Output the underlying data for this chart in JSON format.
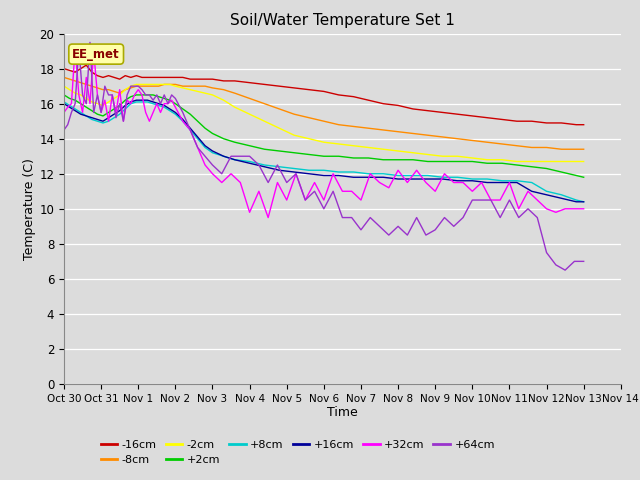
{
  "title": "Soil/Water Temperature Set 1",
  "xlabel": "Time",
  "ylabel": "Temperature (C)",
  "annotation": "EE_met",
  "ylim": [
    0,
    20
  ],
  "yticks": [
    0,
    2,
    4,
    6,
    8,
    10,
    12,
    14,
    16,
    18,
    20
  ],
  "x_labels": [
    "Oct 30",
    "Oct 31",
    "Nov 1",
    "Nov 2",
    "Nov 3",
    "Nov 4",
    "Nov 5",
    "Nov 6",
    "Nov 7",
    "Nov 8",
    "Nov 9",
    "Nov 10",
    "Nov 11",
    "Nov 12",
    "Nov 13",
    "Nov 14"
  ],
  "bg_color": "#dcdcdc",
  "series": [
    {
      "label": "-16cm",
      "color": "#cc0000",
      "data_x": [
        0,
        0.15,
        0.3,
        0.45,
        0.6,
        0.75,
        0.9,
        1.05,
        1.2,
        1.35,
        1.5,
        1.65,
        1.8,
        1.95,
        2.1,
        2.25,
        2.4,
        2.55,
        2.7,
        2.85,
        3.0,
        3.2,
        3.4,
        3.6,
        3.8,
        4.0,
        4.3,
        4.6,
        5.0,
        5.4,
        5.8,
        6.2,
        6.6,
        7.0,
        7.4,
        7.8,
        8.2,
        8.6,
        9.0,
        9.4,
        9.8,
        10.2,
        10.6,
        11.0,
        11.4,
        11.8,
        12.2,
        12.6,
        13.0,
        13.4,
        13.8,
        14.0
      ],
      "data_y": [
        18.0,
        17.9,
        17.8,
        18.0,
        18.2,
        17.8,
        17.6,
        17.5,
        17.6,
        17.5,
        17.4,
        17.6,
        17.5,
        17.6,
        17.5,
        17.5,
        17.5,
        17.5,
        17.5,
        17.5,
        17.5,
        17.5,
        17.4,
        17.4,
        17.4,
        17.4,
        17.3,
        17.3,
        17.2,
        17.1,
        17.0,
        16.9,
        16.8,
        16.7,
        16.5,
        16.4,
        16.2,
        16.0,
        15.9,
        15.7,
        15.6,
        15.5,
        15.4,
        15.3,
        15.2,
        15.1,
        15.0,
        15.0,
        14.9,
        14.9,
        14.8,
        14.8
      ]
    },
    {
      "label": "-8cm",
      "color": "#ff8c00",
      "data_x": [
        0,
        0.15,
        0.3,
        0.45,
        0.6,
        0.75,
        0.9,
        1.05,
        1.2,
        1.35,
        1.5,
        1.65,
        1.8,
        1.95,
        2.1,
        2.25,
        2.4,
        2.55,
        2.7,
        2.85,
        3.0,
        3.2,
        3.4,
        3.6,
        3.8,
        4.0,
        4.3,
        4.6,
        5.0,
        5.4,
        5.8,
        6.2,
        6.6,
        7.0,
        7.4,
        7.8,
        8.2,
        8.6,
        9.0,
        9.4,
        9.8,
        10.2,
        10.6,
        11.0,
        11.4,
        11.8,
        12.2,
        12.6,
        13.0,
        13.4,
        13.8,
        14.0
      ],
      "data_y": [
        17.5,
        17.4,
        17.3,
        17.2,
        17.1,
        17.0,
        16.9,
        16.8,
        16.8,
        16.7,
        16.6,
        16.8,
        16.9,
        17.0,
        17.0,
        17.0,
        17.0,
        17.0,
        17.1,
        17.1,
        17.1,
        17.0,
        17.0,
        17.0,
        17.0,
        16.9,
        16.8,
        16.6,
        16.3,
        16.0,
        15.7,
        15.4,
        15.2,
        15.0,
        14.8,
        14.7,
        14.6,
        14.5,
        14.4,
        14.3,
        14.2,
        14.1,
        14.0,
        13.9,
        13.8,
        13.7,
        13.6,
        13.5,
        13.5,
        13.4,
        13.4,
        13.4
      ]
    },
    {
      "label": "-2cm",
      "color": "#ffff00",
      "data_x": [
        0,
        0.15,
        0.3,
        0.45,
        0.6,
        0.75,
        0.9,
        1.05,
        1.2,
        1.35,
        1.5,
        1.65,
        1.8,
        1.95,
        2.1,
        2.25,
        2.4,
        2.55,
        2.7,
        2.85,
        3.0,
        3.2,
        3.4,
        3.6,
        3.8,
        4.0,
        4.3,
        4.6,
        5.0,
        5.4,
        5.8,
        6.2,
        6.6,
        7.0,
        7.4,
        7.8,
        8.2,
        8.6,
        9.0,
        9.4,
        9.8,
        10.2,
        10.6,
        11.0,
        11.4,
        11.8,
        12.2,
        12.6,
        13.0,
        13.4,
        13.8,
        14.0
      ],
      "data_y": [
        17.0,
        16.8,
        16.6,
        16.5,
        16.3,
        16.1,
        16.0,
        15.9,
        16.1,
        16.3,
        16.5,
        16.8,
        17.0,
        17.1,
        17.1,
        17.1,
        17.1,
        17.1,
        17.1,
        17.1,
        17.0,
        16.9,
        16.8,
        16.7,
        16.6,
        16.5,
        16.2,
        15.8,
        15.4,
        15.0,
        14.6,
        14.2,
        14.0,
        13.8,
        13.7,
        13.6,
        13.5,
        13.4,
        13.3,
        13.2,
        13.1,
        13.0,
        13.0,
        12.9,
        12.8,
        12.8,
        12.7,
        12.7,
        12.7,
        12.7,
        12.7,
        12.7
      ]
    },
    {
      "label": "+2cm",
      "color": "#00cc00",
      "data_x": [
        0,
        0.15,
        0.3,
        0.45,
        0.6,
        0.75,
        0.9,
        1.05,
        1.2,
        1.35,
        1.5,
        1.65,
        1.8,
        1.95,
        2.1,
        2.25,
        2.4,
        2.55,
        2.7,
        2.85,
        3.0,
        3.2,
        3.4,
        3.6,
        3.8,
        4.0,
        4.3,
        4.6,
        5.0,
        5.4,
        5.8,
        6.2,
        6.6,
        7.0,
        7.4,
        7.8,
        8.2,
        8.6,
        9.0,
        9.4,
        9.8,
        10.2,
        10.6,
        11.0,
        11.4,
        11.8,
        12.2,
        12.6,
        13.0,
        13.4,
        13.8,
        14.0
      ],
      "data_y": [
        16.5,
        16.3,
        16.2,
        16.0,
        15.8,
        15.6,
        15.4,
        15.3,
        15.5,
        15.7,
        15.9,
        16.2,
        16.4,
        16.5,
        16.5,
        16.5,
        16.5,
        16.4,
        16.3,
        16.2,
        16.0,
        15.7,
        15.4,
        15.0,
        14.6,
        14.3,
        14.0,
        13.8,
        13.6,
        13.4,
        13.3,
        13.2,
        13.1,
        13.0,
        13.0,
        12.9,
        12.9,
        12.8,
        12.8,
        12.8,
        12.7,
        12.7,
        12.7,
        12.7,
        12.6,
        12.6,
        12.5,
        12.4,
        12.3,
        12.1,
        11.9,
        11.8
      ]
    },
    {
      "label": "+8cm",
      "color": "#00cccc",
      "data_x": [
        0,
        0.15,
        0.3,
        0.45,
        0.6,
        0.75,
        0.9,
        1.05,
        1.2,
        1.35,
        1.5,
        1.65,
        1.8,
        1.95,
        2.1,
        2.25,
        2.4,
        2.55,
        2.7,
        2.85,
        3.0,
        3.2,
        3.4,
        3.6,
        3.8,
        4.0,
        4.3,
        4.6,
        5.0,
        5.4,
        5.8,
        6.2,
        6.6,
        7.0,
        7.4,
        7.8,
        8.2,
        8.6,
        9.0,
        9.4,
        9.8,
        10.2,
        10.6,
        11.0,
        11.4,
        11.8,
        12.2,
        12.6,
        13.0,
        13.4,
        13.8,
        14.0
      ],
      "data_y": [
        16.1,
        15.9,
        15.7,
        15.5,
        15.3,
        15.1,
        15.0,
        14.9,
        15.0,
        15.2,
        15.4,
        15.7,
        16.0,
        16.1,
        16.1,
        16.1,
        16.0,
        15.9,
        15.8,
        15.6,
        15.4,
        15.0,
        14.5,
        14.0,
        13.5,
        13.2,
        13.0,
        12.8,
        12.7,
        12.5,
        12.4,
        12.3,
        12.2,
        12.2,
        12.1,
        12.1,
        12.0,
        12.0,
        11.9,
        11.9,
        11.9,
        11.8,
        11.8,
        11.7,
        11.7,
        11.6,
        11.6,
        11.5,
        11.0,
        10.8,
        10.5,
        10.4
      ]
    },
    {
      "label": "+16cm",
      "color": "#000099",
      "data_x": [
        0,
        0.15,
        0.3,
        0.45,
        0.6,
        0.75,
        0.9,
        1.05,
        1.2,
        1.35,
        1.5,
        1.65,
        1.8,
        1.95,
        2.1,
        2.25,
        2.4,
        2.55,
        2.7,
        2.85,
        3.0,
        3.2,
        3.4,
        3.6,
        3.8,
        4.0,
        4.3,
        4.6,
        5.0,
        5.4,
        5.8,
        6.2,
        6.6,
        7.0,
        7.4,
        7.8,
        8.2,
        8.6,
        9.0,
        9.4,
        9.8,
        10.2,
        10.6,
        11.0,
        11.4,
        11.8,
        12.2,
        12.6,
        13.0,
        13.4,
        13.8,
        14.0
      ],
      "data_y": [
        16.0,
        15.8,
        15.6,
        15.4,
        15.3,
        15.2,
        15.1,
        15.0,
        15.2,
        15.4,
        15.6,
        15.9,
        16.1,
        16.2,
        16.2,
        16.2,
        16.1,
        16.0,
        15.9,
        15.7,
        15.5,
        15.1,
        14.6,
        14.1,
        13.6,
        13.3,
        13.0,
        12.8,
        12.6,
        12.4,
        12.2,
        12.1,
        12.0,
        11.9,
        11.9,
        11.8,
        11.8,
        11.8,
        11.7,
        11.7,
        11.7,
        11.7,
        11.6,
        11.6,
        11.5,
        11.5,
        11.5,
        11.0,
        10.8,
        10.6,
        10.4,
        10.4
      ]
    },
    {
      "label": "+32cm",
      "color": "#ff00ff",
      "data_x": [
        0,
        0.1,
        0.2,
        0.3,
        0.4,
        0.5,
        0.6,
        0.7,
        0.8,
        0.9,
        1.0,
        1.1,
        1.2,
        1.3,
        1.4,
        1.5,
        1.6,
        1.7,
        1.8,
        1.9,
        2.0,
        2.1,
        2.2,
        2.3,
        2.4,
        2.5,
        2.6,
        2.7,
        2.8,
        2.9,
        3.0,
        3.2,
        3.4,
        3.6,
        3.8,
        4.0,
        4.25,
        4.5,
        4.75,
        5.0,
        5.25,
        5.5,
        5.75,
        6.0,
        6.25,
        6.5,
        6.75,
        7.0,
        7.25,
        7.5,
        7.75,
        8.0,
        8.25,
        8.5,
        8.75,
        9.0,
        9.25,
        9.5,
        9.75,
        10.0,
        10.25,
        10.5,
        10.75,
        11.0,
        11.25,
        11.5,
        11.75,
        12.0,
        12.25,
        12.5,
        12.75,
        13.0,
        13.25,
        13.5,
        13.75,
        14.0
      ],
      "data_y": [
        15.5,
        15.8,
        16.0,
        19.2,
        16.5,
        15.5,
        17.5,
        16.0,
        19.0,
        16.5,
        15.5,
        16.2,
        15.0,
        16.5,
        15.5,
        16.8,
        15.0,
        16.2,
        16.0,
        16.5,
        16.8,
        16.5,
        15.5,
        15.0,
        15.5,
        16.0,
        15.5,
        16.0,
        16.0,
        16.2,
        15.8,
        15.0,
        14.5,
        13.5,
        12.5,
        12.0,
        11.5,
        12.0,
        11.5,
        9.8,
        11.0,
        9.5,
        11.5,
        10.5,
        12.0,
        10.5,
        11.5,
        10.5,
        12.0,
        11.0,
        11.0,
        10.5,
        12.0,
        11.5,
        11.2,
        12.2,
        11.5,
        12.2,
        11.5,
        11.0,
        12.0,
        11.5,
        11.5,
        11.0,
        11.5,
        10.5,
        10.5,
        11.5,
        10.0,
        11.0,
        10.5,
        10.0,
        9.8,
        10.0,
        10.0,
        10.0
      ]
    },
    {
      "label": "+64cm",
      "color": "#9933cc",
      "data_x": [
        0,
        0.1,
        0.2,
        0.3,
        0.4,
        0.5,
        0.6,
        0.7,
        0.8,
        0.9,
        1.0,
        1.1,
        1.2,
        1.3,
        1.4,
        1.5,
        1.6,
        1.7,
        1.8,
        1.9,
        2.0,
        2.1,
        2.2,
        2.3,
        2.4,
        2.5,
        2.6,
        2.7,
        2.8,
        2.9,
        3.0,
        3.2,
        3.4,
        3.6,
        3.8,
        4.0,
        4.25,
        4.5,
        4.75,
        5.0,
        5.25,
        5.5,
        5.75,
        6.0,
        6.25,
        6.5,
        6.75,
        7.0,
        7.25,
        7.5,
        7.75,
        8.0,
        8.25,
        8.5,
        8.75,
        9.0,
        9.25,
        9.5,
        9.75,
        10.0,
        10.25,
        10.5,
        10.75,
        11.0,
        11.25,
        11.5,
        11.75,
        12.0,
        12.25,
        12.5,
        12.75,
        13.0,
        13.25,
        13.5,
        13.75,
        14.0
      ],
      "data_y": [
        14.5,
        14.8,
        15.5,
        16.0,
        19.2,
        16.5,
        16.0,
        19.5,
        15.5,
        16.5,
        15.5,
        17.0,
        16.5,
        16.5,
        15.2,
        16.0,
        15.0,
        16.5,
        17.0,
        17.0,
        17.0,
        16.8,
        16.5,
        16.5,
        16.2,
        16.5,
        16.0,
        16.5,
        16.0,
        16.5,
        16.3,
        15.5,
        14.5,
        13.5,
        13.0,
        12.5,
        12.0,
        13.0,
        13.0,
        13.0,
        12.5,
        11.5,
        12.5,
        11.5,
        12.0,
        10.5,
        11.0,
        10.0,
        11.0,
        9.5,
        9.5,
        8.8,
        9.5,
        9.0,
        8.5,
        9.0,
        8.5,
        9.5,
        8.5,
        8.8,
        9.5,
        9.0,
        9.5,
        10.5,
        10.5,
        10.5,
        9.5,
        10.5,
        9.5,
        10.0,
        9.5,
        7.5,
        6.8,
        6.5,
        7.0,
        7.0
      ]
    }
  ],
  "legend_labels": [
    "-16cm",
    "-8cm",
    "-2cm",
    "+2cm",
    "+8cm",
    "+16cm",
    "+32cm",
    "+64cm"
  ],
  "legend_colors": [
    "#cc0000",
    "#ff8c00",
    "#ffff00",
    "#00cc00",
    "#00cccc",
    "#000099",
    "#ff00ff",
    "#9933cc"
  ]
}
